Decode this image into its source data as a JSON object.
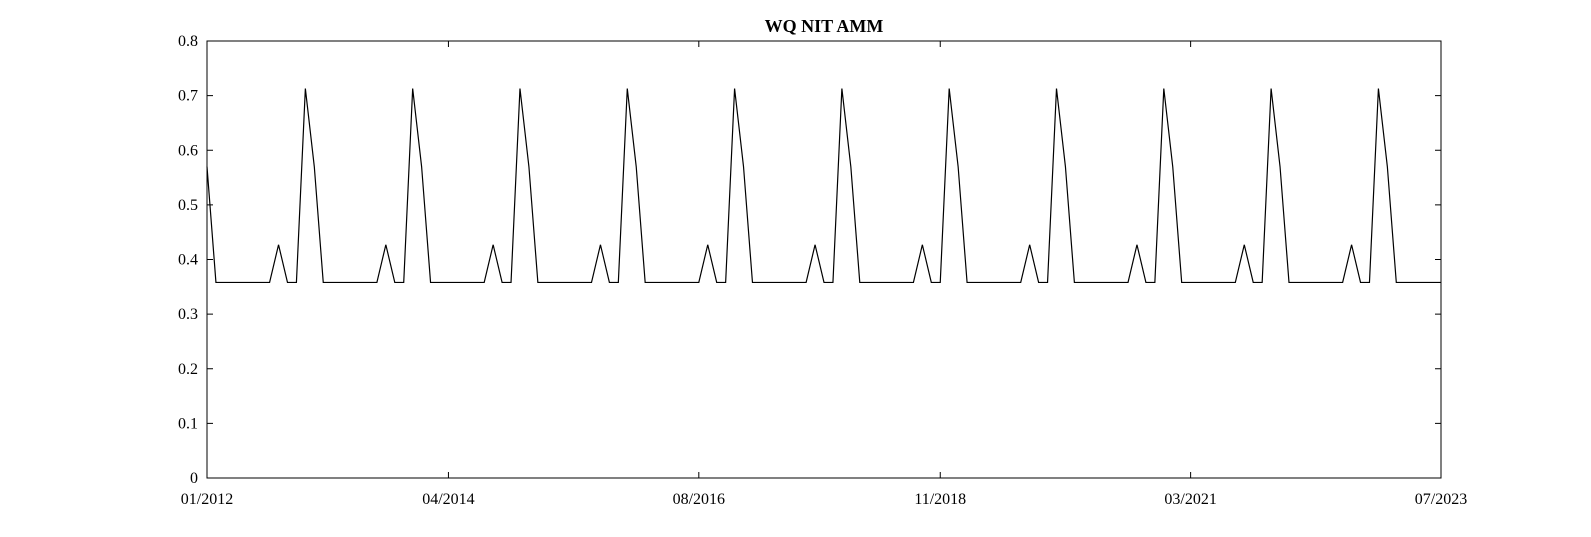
{
  "chart_data": {
    "type": "line",
    "title": "WQ NIT AMM",
    "xlabel": "",
    "ylabel": "",
    "ylim": [
      0,
      0.8
    ],
    "yticks": [
      0,
      0.1,
      0.2,
      0.3,
      0.4,
      0.5,
      0.6,
      0.7,
      0.8
    ],
    "ytick_labels": [
      "0",
      "0.1",
      "0.2",
      "0.3",
      "0.4",
      "0.5",
      "0.6",
      "0.7",
      "0.8"
    ],
    "xlim_months": [
      0,
      138
    ],
    "xticks_months": [
      0,
      27,
      55,
      82,
      110,
      138
    ],
    "xtick_labels": [
      "01/2012",
      "04/2014",
      "08/2016",
      "11/2018",
      "03/2021",
      "07/2023"
    ],
    "grid": false,
    "series": [
      {
        "name": "WQ NIT AMM",
        "color": "#000000",
        "x_months": [
          0,
          1,
          7,
          8,
          9,
          10,
          11,
          12,
          13,
          19,
          20,
          21,
          22,
          23,
          24,
          25,
          31,
          32,
          33,
          34,
          35,
          36,
          37,
          43,
          44,
          45,
          46,
          47,
          48,
          49,
          55,
          56,
          57,
          58,
          59,
          60,
          61,
          67,
          68,
          69,
          70,
          71,
          72,
          73,
          79,
          80,
          81,
          82,
          83,
          84,
          85,
          91,
          92,
          93,
          94,
          95,
          96,
          97,
          103,
          104,
          105,
          106,
          107,
          108,
          109,
          115,
          116,
          117,
          118,
          119,
          120,
          121,
          127,
          128,
          129,
          130,
          131,
          132,
          133,
          138
        ],
        "values": [
          0.57,
          0.358,
          0.358,
          0.427,
          0.358,
          0.358,
          0.713,
          0.57,
          0.358,
          0.358,
          0.427,
          0.358,
          0.358,
          0.713,
          0.57,
          0.358,
          0.358,
          0.427,
          0.358,
          0.358,
          0.713,
          0.57,
          0.358,
          0.358,
          0.427,
          0.358,
          0.358,
          0.713,
          0.57,
          0.358,
          0.358,
          0.427,
          0.358,
          0.358,
          0.713,
          0.57,
          0.358,
          0.358,
          0.427,
          0.358,
          0.358,
          0.713,
          0.57,
          0.358,
          0.358,
          0.427,
          0.358,
          0.358,
          0.713,
          0.57,
          0.358,
          0.358,
          0.427,
          0.358,
          0.358,
          0.713,
          0.57,
          0.358,
          0.358,
          0.427,
          0.358,
          0.358,
          0.713,
          0.57,
          0.358,
          0.358,
          0.427,
          0.358,
          0.358,
          0.713,
          0.57,
          0.358,
          0.358,
          0.427,
          0.358,
          0.358,
          0.713,
          0.57,
          0.358,
          0.358
        ]
      }
    ]
  }
}
